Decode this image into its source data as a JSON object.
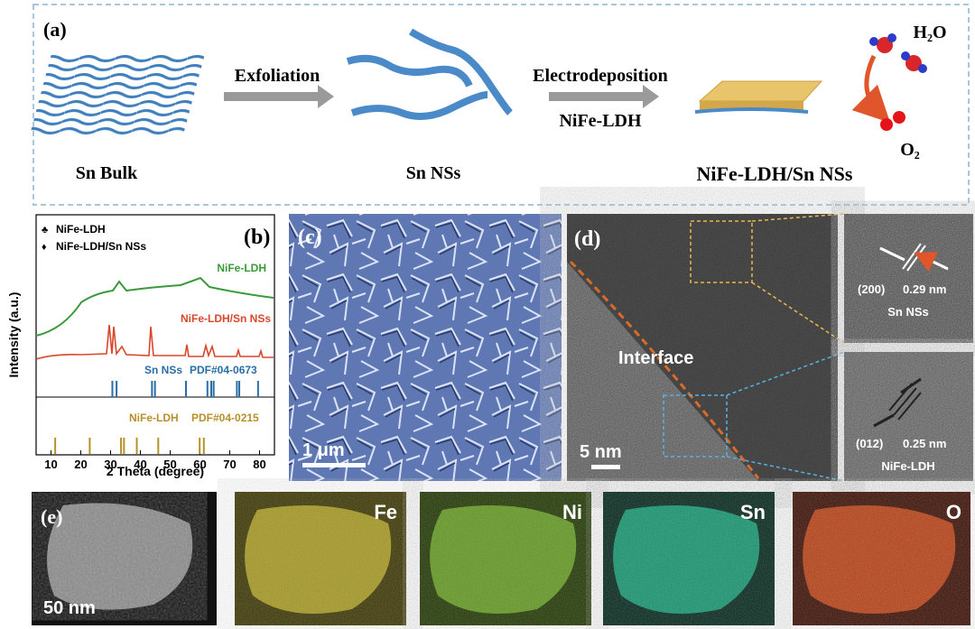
{
  "panel_a": {
    "label": "(a)",
    "steps": [
      "Exfoliation",
      "Electrodeposition"
    ],
    "step_sub": "NiFe-LDH",
    "stages": [
      "Sn Bulk",
      "Sn NSs",
      "NiFe-LDH/Sn NSs"
    ],
    "reactant": "H₂O",
    "product": "O₂"
  },
  "panel_b": {
    "label": "(b)",
    "legend": [
      {
        "symbol": "♣",
        "name": "NiFe-LDH"
      },
      {
        "symbol": "♦",
        "name": "NiFe-LDH/Sn NSs"
      }
    ],
    "curve_labels": [
      "NiFe-LDH",
      "NiFe-LDH/Sn NSs"
    ],
    "references": [
      {
        "name": "Sn NSs",
        "pdf": "PDF#04-0673",
        "color": "#2a6ea6",
        "peaks": [
          30.6,
          32.0,
          43.9,
          44.9,
          55.3,
          62.5,
          63.8,
          64.6,
          72.4,
          73.2,
          79.5
        ]
      },
      {
        "name": "NiFe-LDH",
        "pdf": "PDF#04-0215",
        "color": "#b8902a",
        "peaks": [
          11.4,
          23.0,
          33.5,
          34.5,
          38.8,
          46.0,
          59.9,
          61.3
        ]
      }
    ],
    "x_label": "2 Theta (degree)",
    "y_label": "Intensity (a.u.)",
    "xlim": [
      5,
      85
    ],
    "xticks": [
      10,
      20,
      30,
      40,
      50,
      60,
      70,
      80
    ]
  },
  "panel_c": {
    "label": "(c)",
    "scale": "1 μm"
  },
  "panel_d": {
    "label": "(d)",
    "interface": "Interface",
    "scale": "5 nm",
    "insets": [
      {
        "plane": "(200)",
        "spacing": "0.29 nm",
        "material": "Sn NSs"
      },
      {
        "plane": "(012)",
        "spacing": "0.25 nm",
        "material": "NiFe-LDH"
      }
    ]
  },
  "panel_e": {
    "label": "(e)",
    "scale": "50 nm",
    "maps": [
      "Fe",
      "Ni",
      "Sn",
      "O"
    ]
  }
}
